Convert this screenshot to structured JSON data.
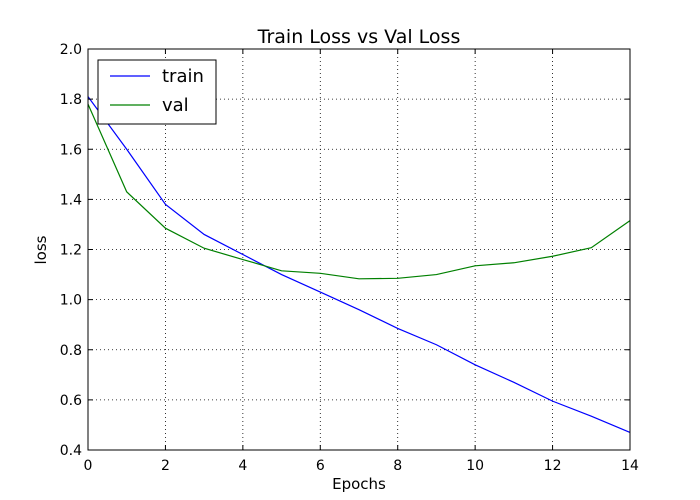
{
  "chart_data": {
    "type": "line",
    "title": "Train Loss vs Val Loss",
    "xlabel": "Epochs",
    "ylabel": "loss",
    "xlim": [
      0,
      14
    ],
    "ylim": [
      0.4,
      2.0
    ],
    "x_ticks": [
      0,
      2,
      4,
      6,
      8,
      10,
      12,
      14
    ],
    "y_ticks": [
      0.4,
      0.6,
      0.8,
      1.0,
      1.2,
      1.4,
      1.6,
      1.8,
      2.0
    ],
    "x_tick_labels": [
      "0",
      "2",
      "4",
      "6",
      "8",
      "10",
      "12",
      "14"
    ],
    "y_tick_labels": [
      "0.4",
      "0.6",
      "0.8",
      "1.0",
      "1.2",
      "1.4",
      "1.6",
      "1.8",
      "2.0"
    ],
    "grid": true,
    "legend_position": "top-left",
    "x": [
      0,
      1,
      2,
      3,
      4,
      5,
      6,
      7,
      8,
      9,
      10,
      11,
      12,
      13,
      14
    ],
    "series": [
      {
        "name": "train",
        "color": "#0000ff",
        "values": [
          1.81,
          1.6,
          1.38,
          1.26,
          1.18,
          1.1,
          1.03,
          0.96,
          0.885,
          0.82,
          0.74,
          0.67,
          0.595,
          0.535,
          0.47
        ]
      },
      {
        "name": "val",
        "color": "#008000",
        "values": [
          1.78,
          1.43,
          1.285,
          1.205,
          1.16,
          1.115,
          1.105,
          1.083,
          1.085,
          1.1,
          1.135,
          1.147,
          1.173,
          1.207,
          1.315
        ]
      }
    ]
  }
}
